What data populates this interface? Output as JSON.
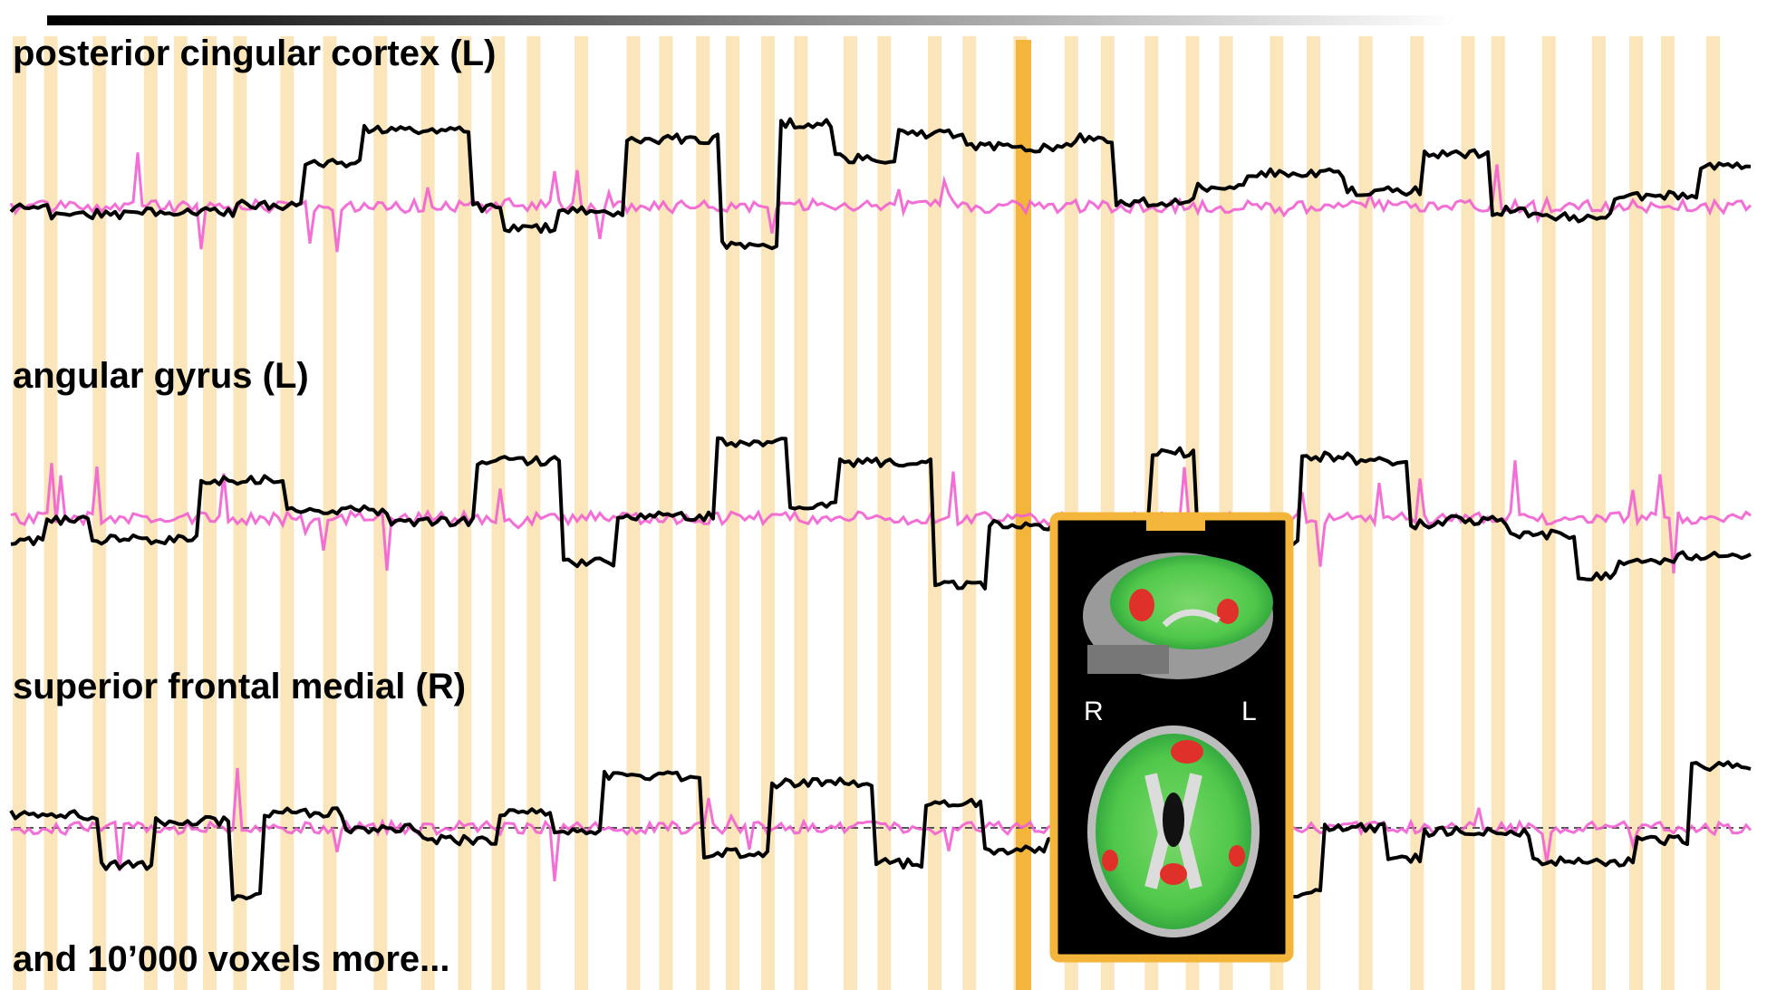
{
  "labels": [
    "posterior cingular cortex (L)",
    "angular gyrus (L)",
    "superior frontal medial (R)",
    "and 10’000 voxels more..."
  ],
  "inset": {
    "left_marker": "R",
    "right_marker": "L"
  }
}
